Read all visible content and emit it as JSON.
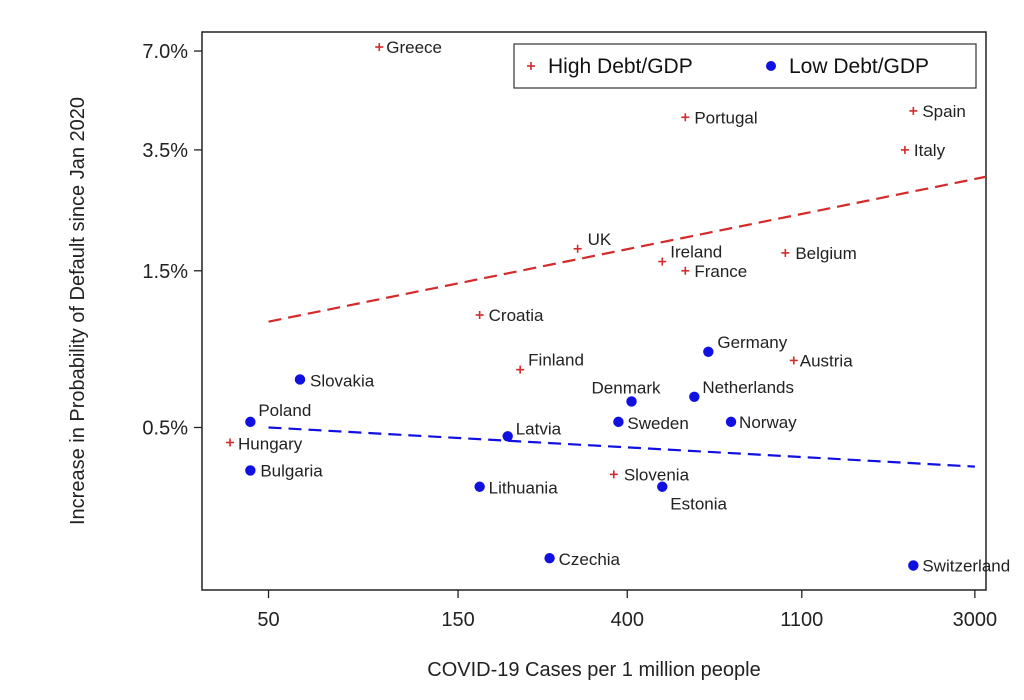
{
  "chart_data": {
    "type": "scatter",
    "xlabel": "COVID-19 Cases per 1 million people",
    "ylabel": "Increase in Probability of Default since Jan 2020",
    "x_scale": "log",
    "y_scale": "log",
    "xlim": [
      34,
      3200
    ],
    "ylim": [
      0.16,
      8.0
    ],
    "x_ticks": [
      {
        "value": 50,
        "label": "50"
      },
      {
        "value": 150,
        "label": "150"
      },
      {
        "value": 400,
        "label": "400"
      },
      {
        "value": 1100,
        "label": "1100"
      },
      {
        "value": 3000,
        "label": "3000"
      }
    ],
    "y_ticks": [
      {
        "value": 0.5,
        "label": "0.5%"
      },
      {
        "value": 1.5,
        "label": "1.5%"
      },
      {
        "value": 3.5,
        "label": "3.5%"
      },
      {
        "value": 7.0,
        "label": "7.0%"
      }
    ],
    "grid": false,
    "legend_position": "top-right",
    "colors": {
      "high": "#d42a2a",
      "low": "#1010e0"
    },
    "series": [
      {
        "name": "High Debt/GDP",
        "key": "high",
        "marker": "plus",
        "points": [
          {
            "label": "Greece",
            "x": 95,
            "y": 7.2
          },
          {
            "label": "Portugal",
            "x": 560,
            "y": 4.4
          },
          {
            "label": "Spain",
            "x": 2100,
            "y": 4.6
          },
          {
            "label": "Italy",
            "x": 2000,
            "y": 3.5
          },
          {
            "label": "UK",
            "x": 300,
            "y": 1.75
          },
          {
            "label": "Ireland",
            "x": 490,
            "y": 1.6
          },
          {
            "label": "France",
            "x": 560,
            "y": 1.5
          },
          {
            "label": "Belgium",
            "x": 1000,
            "y": 1.7
          },
          {
            "label": "Croatia",
            "x": 170,
            "y": 1.1
          },
          {
            "label": "Finland",
            "x": 215,
            "y": 0.75
          },
          {
            "label": "Austria",
            "x": 1050,
            "y": 0.8
          },
          {
            "label": "Hungary",
            "x": 40,
            "y": 0.45
          },
          {
            "label": "Slovenia",
            "x": 370,
            "y": 0.36
          }
        ]
      },
      {
        "name": "Low Debt/GDP",
        "key": "low",
        "marker": "dot",
        "points": [
          {
            "label": "Slovakia",
            "x": 60,
            "y": 0.7
          },
          {
            "label": "Poland",
            "x": 45,
            "y": 0.52
          },
          {
            "label": "Bulgaria",
            "x": 45,
            "y": 0.37
          },
          {
            "label": "Latvia",
            "x": 200,
            "y": 0.47
          },
          {
            "label": "Lithuania",
            "x": 170,
            "y": 0.33
          },
          {
            "label": "Czechia",
            "x": 255,
            "y": 0.2
          },
          {
            "label": "Denmark",
            "x": 410,
            "y": 0.6
          },
          {
            "label": "Sweden",
            "x": 380,
            "y": 0.52
          },
          {
            "label": "Estonia",
            "x": 490,
            "y": 0.33
          },
          {
            "label": "Germany",
            "x": 640,
            "y": 0.85
          },
          {
            "label": "Netherlands",
            "x": 590,
            "y": 0.62
          },
          {
            "label": "Norway",
            "x": 730,
            "y": 0.52
          },
          {
            "label": "Switzerland",
            "x": 2100,
            "y": 0.19
          }
        ]
      }
    ],
    "trend_lines": [
      {
        "series": "high",
        "x": [
          50,
          3200
        ],
        "y": [
          1.05,
          2.9
        ]
      },
      {
        "series": "low",
        "x": [
          50,
          3000
        ],
        "y": [
          0.5,
          0.38
        ]
      }
    ]
  }
}
